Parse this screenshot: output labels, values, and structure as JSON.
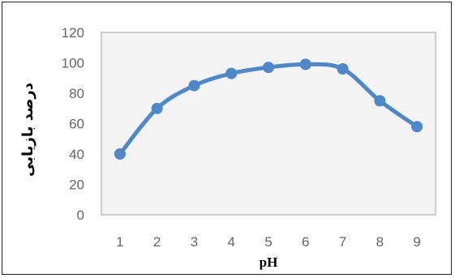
{
  "chart_data": {
    "type": "line",
    "x": [
      1,
      2,
      3,
      4,
      5,
      6,
      7,
      8,
      9
    ],
    "series": [
      {
        "values": [
          40,
          70,
          85,
          93,
          97,
          99,
          96,
          75,
          58
        ]
      }
    ],
    "x_ticks": [
      "1",
      "2",
      "3",
      "4",
      "5",
      "6",
      "7",
      "8",
      "9"
    ],
    "y_ticks": [
      "0",
      "20",
      "40",
      "60",
      "80",
      "100",
      "120"
    ],
    "xlabel": "pH",
    "ylabel": "درصد بازیابی",
    "ylim": [
      0,
      120
    ],
    "xlim": [
      0.5,
      9.5
    ],
    "grid": false,
    "colors": {
      "line": "#4f88c9",
      "marker": "#4f88c9",
      "plot_border": "#bfbfbf",
      "plot_bg": "#f4f4f4"
    }
  }
}
